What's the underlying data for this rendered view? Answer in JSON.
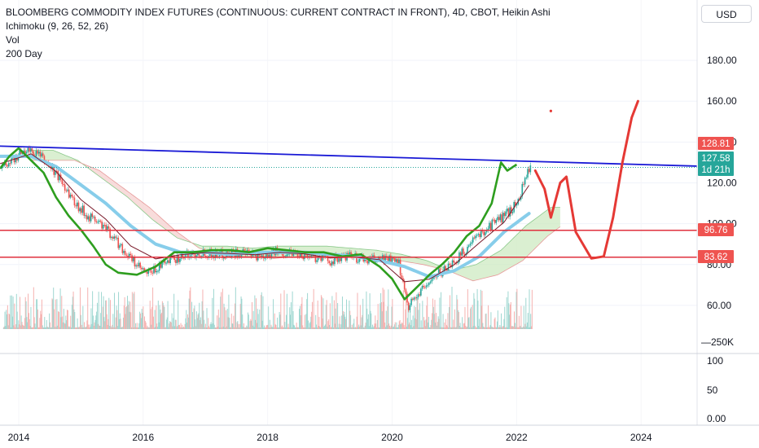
{
  "legend": {
    "title": "BLOOMBERG COMMODITY INDEX FUTURES (CONTINUOUS: CURRENT CONTRACT IN FRONT), 4D, CBOT, Heikin Ashi",
    "indicators": [
      "Ichimoku (9, 26, 52, 26)",
      "Vol",
      "200 Day"
    ]
  },
  "currency": "USD",
  "colors": {
    "trendline": "#1a1ad6",
    "support": "#e0313e",
    "projection": "#e53935",
    "sma200": "#2e9e1f",
    "ichimoku_base": "#87cdea",
    "ichimoku_conv": "#7a1a2a",
    "up": "#26a69a",
    "down": "#ef5350",
    "cloud_bull": "#cdeac2",
    "cloud_bear": "#f6d0cf"
  },
  "chart_data": {
    "type": "line",
    "title": "BLOOMBERG COMMODITY INDEX FUTURES (CONTINUOUS: CURRENT CONTRACT IN FRONT), 4D, CBOT, Heikin Ashi",
    "xlabel": "",
    "ylabel": "",
    "x_ticks": [
      "2014",
      "2016",
      "2018",
      "2020",
      "2022",
      "2024"
    ],
    "price_ticks": [
      "60.00",
      "80.00",
      "100.00",
      "120.00",
      "140.00",
      "160.00",
      "180.00"
    ],
    "volume_ticks": [
      "250K"
    ],
    "osc_ticks": [
      "100",
      "50",
      "0.00"
    ],
    "ylim": [
      48,
      196
    ],
    "xlim": [
      2013.7,
      2024.9
    ],
    "price_tags": [
      {
        "label": "128.81",
        "value": 128.81,
        "color": "#ef5350"
      },
      {
        "label": "127.58",
        "value": 127.58,
        "color": "#26a69a"
      },
      {
        "label": "1d 21h",
        "value": 123.9,
        "color": "#26a69a"
      },
      {
        "label": "96.76",
        "value": 96.76,
        "color": "#ef5350"
      },
      {
        "label": "83.62",
        "value": 83.62,
        "color": "#ef5350"
      }
    ],
    "horizontal_lines": [
      {
        "name": "resistance-96",
        "value": 96.76
      },
      {
        "name": "support-83",
        "value": 83.62
      }
    ],
    "trendline": {
      "x": [
        2013.7,
        2024.9
      ],
      "y": [
        138,
        128.2
      ]
    },
    "current_price_line": 127.58,
    "marker_dot": {
      "x": 2022.55,
      "y": 155.2
    },
    "series": [
      {
        "name": "price",
        "x": [
          2013.7,
          2013.9,
          2014.1,
          2014.3,
          2014.5,
          2014.7,
          2014.9,
          2015.1,
          2015.3,
          2015.5,
          2015.7,
          2015.9,
          2016.05,
          2016.3,
          2016.6,
          2016.9,
          2017.2,
          2017.5,
          2017.8,
          2018.1,
          2018.4,
          2018.7,
          2019.0,
          2019.3,
          2019.6,
          2019.9,
          2020.1,
          2020.25,
          2020.4,
          2020.6,
          2020.8,
          2021.0,
          2021.2,
          2021.4,
          2021.6,
          2021.8,
          2022.0,
          2022.1,
          2022.2
        ],
        "values": [
          127,
          131,
          136,
          134,
          128,
          120,
          110,
          104,
          100,
          94,
          86,
          79,
          75,
          80,
          84,
          86,
          85,
          86,
          84,
          86,
          86,
          84,
          82,
          84,
          82,
          83,
          80,
          60,
          65,
          72,
          77,
          82,
          88,
          95,
          100,
          104,
          110,
          120,
          128
        ]
      },
      {
        "name": "200 Day",
        "x": [
          2013.7,
          2013.85,
          2014.0,
          2014.2,
          2014.4,
          2014.6,
          2014.8,
          2015.0,
          2015.2,
          2015.4,
          2015.6,
          2015.9,
          2016.2,
          2016.5,
          2016.8,
          2017.1,
          2017.4,
          2017.7,
          2018.0,
          2018.3,
          2018.6,
          2018.9,
          2019.2,
          2019.5,
          2019.8,
          2020.0,
          2020.2,
          2020.4,
          2020.6,
          2020.8,
          2021.0,
          2021.2,
          2021.4,
          2021.6,
          2021.75,
          2021.85,
          2022.0
        ],
        "values": [
          127,
          133,
          137,
          131,
          125,
          113,
          104,
          97,
          89,
          80,
          76,
          75,
          79,
          86,
          86,
          87,
          87,
          86,
          88,
          87,
          86,
          86,
          84,
          85,
          79,
          73,
          63,
          69,
          75,
          80,
          86,
          94,
          99,
          110,
          130,
          126,
          129
        ]
      },
      {
        "name": "Ichimoku base",
        "x": [
          2013.7,
          2014.2,
          2014.6,
          2015.0,
          2015.4,
          2015.8,
          2016.2,
          2016.6,
          2017.0,
          2017.4,
          2017.8,
          2018.2,
          2018.6,
          2019.0,
          2019.4,
          2019.8,
          2020.2,
          2020.6,
          2021.0,
          2021.4,
          2021.8,
          2022.2
        ],
        "values": [
          133,
          133,
          128,
          119,
          110,
          99,
          90,
          86,
          86,
          85,
          86,
          86,
          86,
          85,
          84,
          82,
          79,
          74,
          77,
          84,
          96,
          105
        ]
      },
      {
        "name": "projection",
        "x": [
          2022.3,
          2022.45,
          2022.55,
          2022.7,
          2022.8,
          2022.95,
          2023.2,
          2023.4,
          2023.55,
          2023.7,
          2023.85,
          2023.95
        ],
        "values": [
          126,
          117,
          103,
          120,
          123,
          96,
          83,
          84,
          103,
          130,
          152,
          160
        ]
      }
    ]
  }
}
